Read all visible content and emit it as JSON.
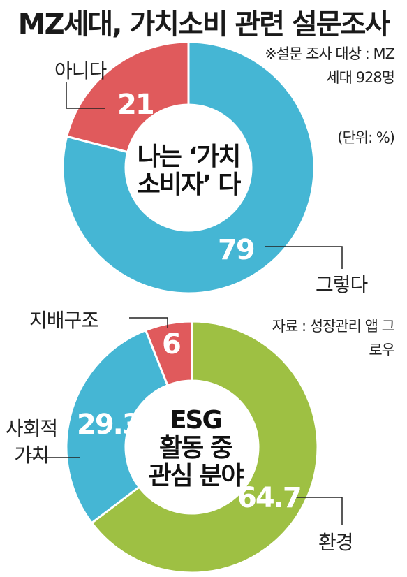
{
  "title": "MZ세대, 가치소비 관련 설문조사",
  "notes": {
    "sample": "※설문 조사 대상 : MZ세대 928명",
    "unit": "(단위: %)",
    "source": "자료 : 성장관리 앱 그로우"
  },
  "colors": {
    "blue": "#45b6d4",
    "red": "#e05a5c",
    "green": "#9ec043",
    "white": "#ffffff"
  },
  "chart_data": [
    {
      "type": "pie",
      "title": "나는 '가치 소비자' 다",
      "center_lines": [
        "나는 ‘가치",
        "소비자’ 다"
      ],
      "categories": [
        "아니다",
        "그렇다"
      ],
      "values": [
        21,
        79
      ],
      "value_labels": [
        "21",
        "79"
      ],
      "colors": [
        "#e05a5c",
        "#45b6d4"
      ]
    },
    {
      "type": "pie",
      "title": "ESG 활동 중 관심 분야",
      "center_lines": [
        "ESG",
        "활동 중",
        "관심 분야"
      ],
      "categories": [
        "환경",
        "사회적 가치",
        "지배구조"
      ],
      "values": [
        64.7,
        29.3,
        6
      ],
      "value_labels": [
        "64.7",
        "29.3",
        "6"
      ],
      "colors": [
        "#9ec043",
        "#45b6d4",
        "#e05a5c"
      ]
    }
  ]
}
